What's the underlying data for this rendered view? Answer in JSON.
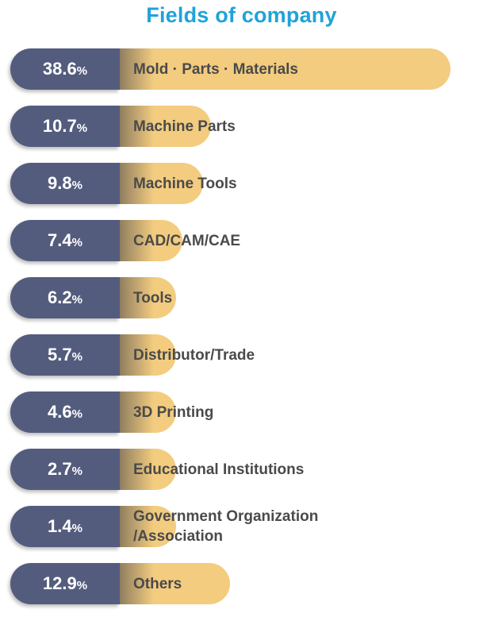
{
  "title": "Fields of company",
  "chart_data": {
    "type": "bar",
    "orientation": "horizontal",
    "title": "Fields of company",
    "percent_symbol": "%",
    "colors": {
      "label_pill": "#545c7e",
      "bar": "#f3cc7f",
      "title": "#1fa3d9",
      "category_text": "#4a4a4a"
    },
    "categories": [
      "Mold · Parts · Materials",
      "Machine Parts",
      "Machine Tools",
      "CAD/CAM/CAE",
      "Tools",
      "Distributor/Trade",
      "3D Printing",
      "Educational Institutions",
      "Government Organization\n/Association",
      "Others"
    ],
    "value_labels": [
      "38.6",
      "10.7",
      "9.8",
      "7.4",
      "6.2",
      "5.7",
      "4.6",
      "2.7",
      "1.4",
      "12.9"
    ],
    "values": [
      38.6,
      10.7,
      9.8,
      7.4,
      6.2,
      5.7,
      4.6,
      2.7,
      1.4,
      12.9
    ]
  }
}
